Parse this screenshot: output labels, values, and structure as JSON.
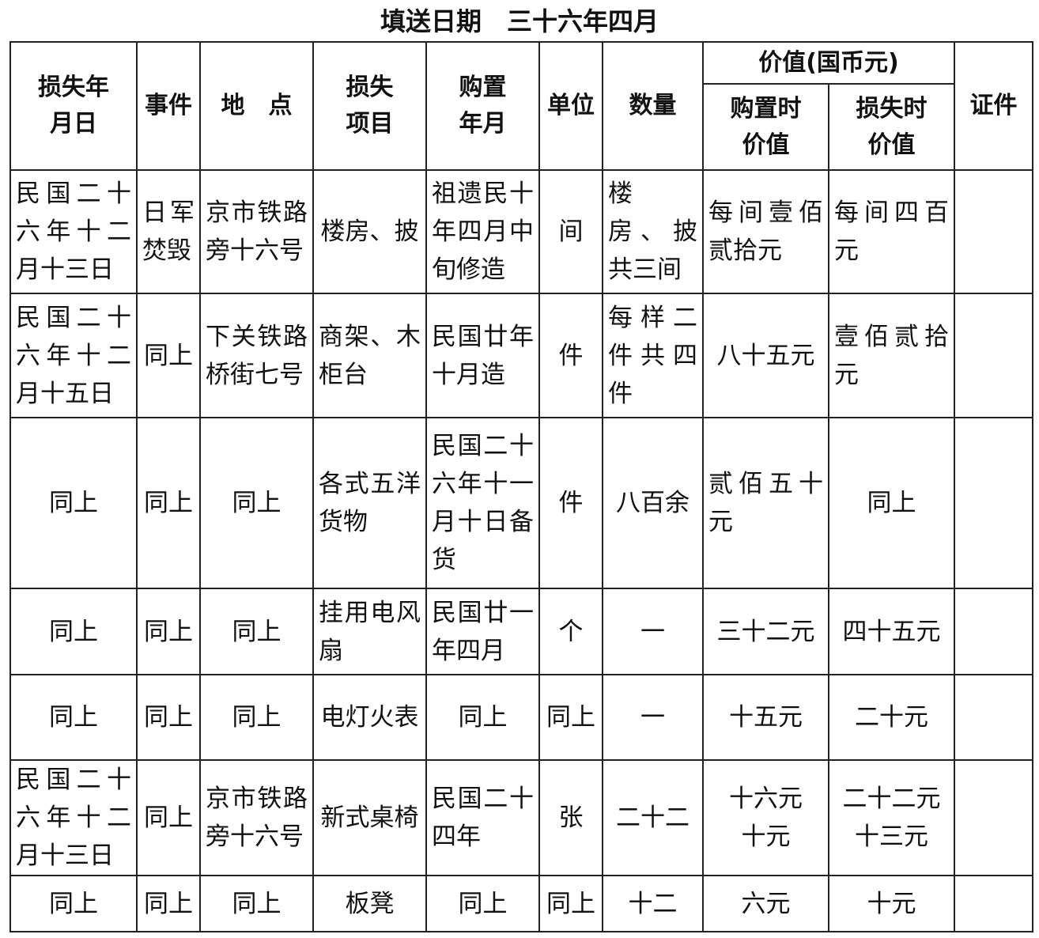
{
  "title": "填送日期　三十六年四月",
  "headers": {
    "date": "损失年月日",
    "event": "事件",
    "place": "地　点",
    "item": "损失项目",
    "purchase_date": "购置年月",
    "unit": "单位",
    "quantity": "数量",
    "value_group": "价值(国币元)",
    "value_purchase": "购置时价值",
    "value_loss": "损失时价值",
    "evidence": "证件"
  },
  "rows": [
    [
      "民国二十六年十二月十三日",
      "日军焚毁",
      "京市铁路旁十六号",
      "楼房、披",
      "祖遗民十年四月中旬修造",
      "间",
      "楼　房、披共三间",
      "每间壹佰贰拾元",
      "每间四百元",
      ""
    ],
    [
      "民国二十六年十二月十五日",
      "同上",
      "下关铁路桥街七号",
      "商架、木柜台",
      "民国廿年十月造",
      "件",
      "每样二件共四件",
      "八十五元",
      "壹佰贰拾元",
      ""
    ],
    [
      "同上",
      "同上",
      "同上",
      "各式五洋货物",
      "民国二十六年十一月十日备货",
      "件",
      "八百余",
      "贰佰五十元",
      "同上",
      ""
    ],
    [
      "同上",
      "同上",
      "同上",
      "挂用电风扇",
      "民国廿一年四月",
      "个",
      "一",
      "三十二元",
      "四十五元",
      ""
    ],
    [
      "同上",
      "同上",
      "同上",
      "电灯火表",
      "同上",
      "同上",
      "一",
      "十五元",
      "二十元",
      ""
    ],
    [
      "民国二十六年十二月十三日",
      "同上",
      "京市铁路旁十六号",
      "新式桌椅",
      "民国二十四年",
      "张",
      "二十二",
      "十六元\n十元",
      "二十二元\n十三元",
      ""
    ],
    [
      "同上",
      "同上",
      "同上",
      "板凳",
      "同上",
      "同上",
      "十二",
      "六元",
      "十元",
      ""
    ]
  ]
}
